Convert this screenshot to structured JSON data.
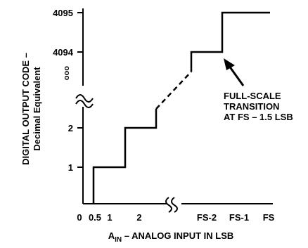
{
  "figure": {
    "y_axis": {
      "title_line1": "DIGITAL OUTPUT CODE –",
      "title_line2": "Decimal Equivalent",
      "ticks": [
        "1",
        "2",
        "4094",
        "4095"
      ],
      "ellipsis": "ooo"
    },
    "x_axis": {
      "title_prefix": "A",
      "title_subscript": "IN",
      "title_suffix": " – ANALOG INPUT IN LSB",
      "ticks": [
        "0",
        "0.5",
        "1",
        "2",
        "FS-2",
        "FS-1",
        "FS"
      ]
    },
    "annotation": {
      "line1": "FULL-SCALE",
      "line2": "TRANSITION",
      "line3": "AT FS – 1.5 LSB"
    }
  }
}
